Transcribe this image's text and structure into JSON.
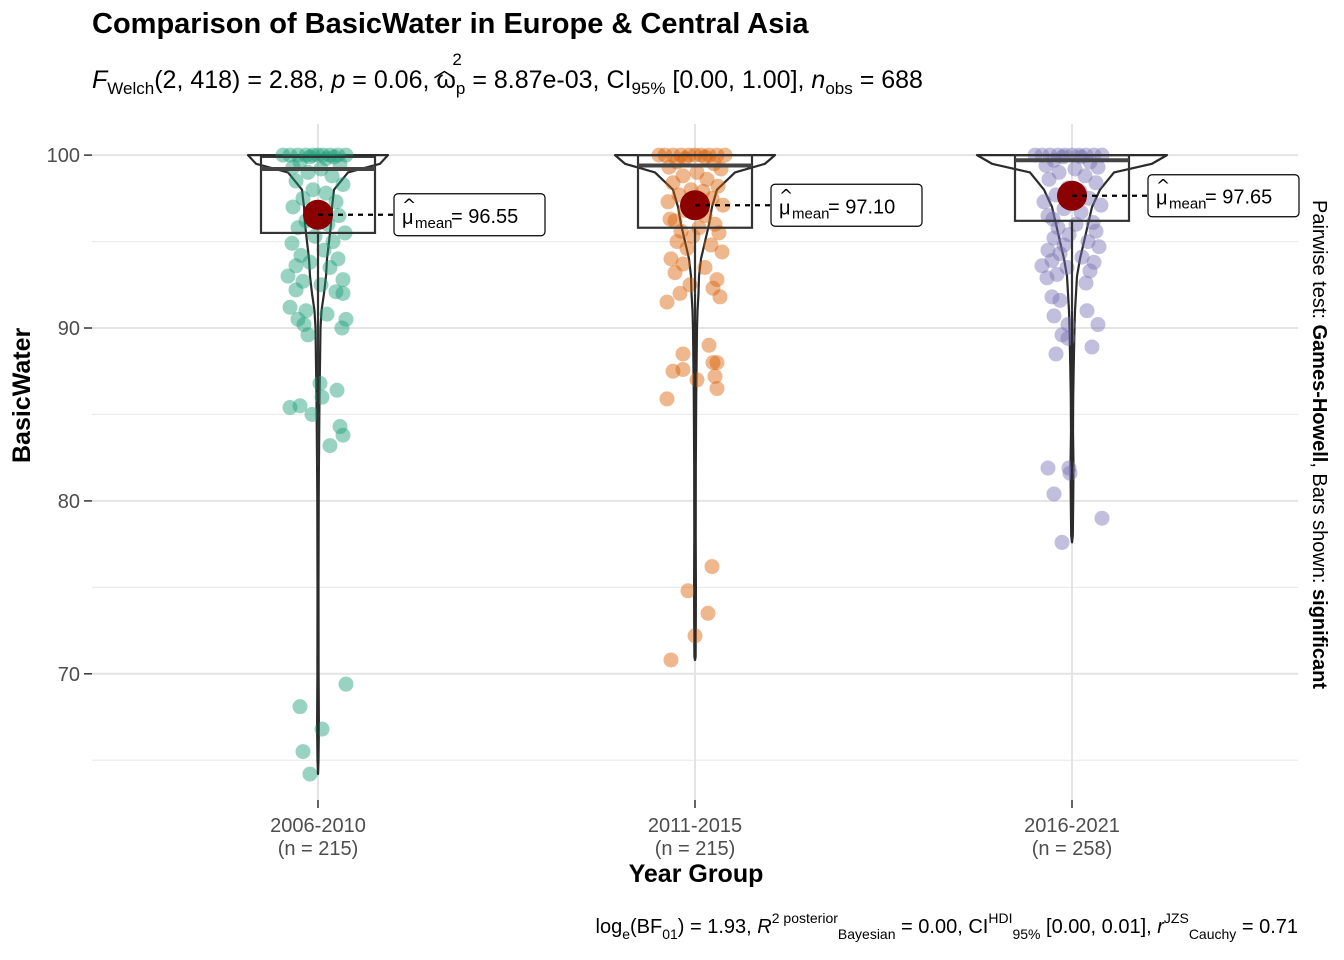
{
  "title": "Comparison of BasicWater in Europe & Central Asia",
  "subtitle": {
    "stat_prefix": "F",
    "stat_sub": "Welch",
    "stat_args": "(2, 418) = 2.88, ",
    "p_label": "p",
    "p_value": " = 0.06, ",
    "omega": "ω",
    "omega_sup": "2",
    "omega_sub": "p",
    "omega_value": " = 8.87e-03, CI",
    "ci_sub": "95%",
    "ci_value": " [0.00, 1.00], ",
    "n_label": "n",
    "n_sub": "obs",
    "n_value": " = 688"
  },
  "caption": {
    "part1": "log",
    "part1_sub": "e",
    "part2": "(BF",
    "part2_sub": "01",
    "part3": ") = 1.93, ",
    "r2": "R",
    "r2_sup": "2 posterior",
    "r2_sub": "Bayesian",
    "part4": " = 0.00, CI",
    "ci_sup": "HDI",
    "ci_sub": "95%",
    "part5": " [0.00, 0.01], ",
    "r": "r",
    "r_sup": "JZS",
    "r_sub": "Cauchy",
    "part6": " = 0.71"
  },
  "right_label": {
    "prefix": "Pairwise test: ",
    "test": "Games-Howell",
    "middle": ", Bars shown: ",
    "shown": "significant"
  },
  "chart_data": {
    "type": "violin-box-scatter",
    "xlabel": "Year Group",
    "ylabel": "BasicWater",
    "ylim": [
      62.7,
      101.8
    ],
    "yticks": [
      70,
      80,
      90,
      100
    ],
    "grid": true,
    "mean_color": "#8B0000",
    "groups": [
      {
        "name": "2006-2010",
        "n_label": "(n = 215)",
        "color": "#1B9E77",
        "mean": 96.55,
        "mean_label": "96.55",
        "box": {
          "q1": 95.5,
          "median": 99.2,
          "q3": 99.9,
          "whisker_low": 82,
          "whisker_high": 100
        },
        "violin_min": 64.2,
        "points": [
          [
            0,
            100
          ],
          [
            -5,
            100
          ],
          [
            5,
            100
          ],
          [
            -12,
            100
          ],
          [
            12,
            100
          ],
          [
            -20,
            100
          ],
          [
            20,
            100
          ],
          [
            -28,
            100
          ],
          [
            28,
            100
          ],
          [
            -35,
            100
          ],
          [
            -8,
            99.9
          ],
          [
            8,
            99.8
          ],
          [
            16,
            99.9
          ],
          [
            -18,
            99.6
          ],
          [
            22,
            99.5
          ],
          [
            -25,
            99.3
          ],
          [
            3,
            99.2
          ],
          [
            -10,
            99
          ],
          [
            14,
            98.8
          ],
          [
            -22,
            98.5
          ],
          [
            25,
            98.3
          ],
          [
            -5,
            98
          ],
          [
            8,
            97.8
          ],
          [
            -15,
            97.5
          ],
          [
            18,
            97.3
          ],
          [
            -25,
            97
          ],
          [
            1,
            96.8
          ],
          [
            21,
            96.5
          ],
          [
            -12,
            96.2
          ],
          [
            10,
            96
          ],
          [
            -20,
            95.8
          ],
          [
            27,
            95.5
          ],
          [
            -3,
            95.3
          ],
          [
            15,
            95
          ],
          [
            -26,
            94.9
          ],
          [
            6,
            94.5
          ],
          [
            -17,
            94.2
          ],
          [
            20,
            94
          ],
          [
            -8,
            93.8
          ],
          [
            -22,
            93.6
          ],
          [
            12,
            93.5
          ],
          [
            -30,
            93
          ],
          [
            25,
            92.8
          ],
          [
            -15,
            92.7
          ],
          [
            3,
            92.5
          ],
          [
            -22,
            92.2
          ],
          [
            18,
            92.1
          ],
          [
            25,
            92
          ],
          [
            -28,
            91.2
          ],
          [
            -12,
            91
          ],
          [
            9,
            90.8
          ],
          [
            -20,
            90.5
          ],
          [
            28,
            90.5
          ],
          [
            -14,
            90.2
          ],
          [
            24,
            90
          ],
          [
            -10,
            89.6
          ],
          [
            2,
            86.8
          ],
          [
            -28,
            85.4
          ],
          [
            -18,
            85.5
          ],
          [
            -6,
            85
          ],
          [
            4,
            86
          ],
          [
            19,
            86.4
          ],
          [
            22,
            84.3
          ],
          [
            25,
            83.8
          ],
          [
            12,
            83.2
          ],
          [
            -18,
            68.1
          ],
          [
            28,
            69.4
          ],
          [
            4,
            66.8
          ],
          [
            -15,
            65.5
          ],
          [
            -8,
            64.2
          ]
        ]
      },
      {
        "name": "2011-2015",
        "n_label": "(n = 215)",
        "color": "#D95F02",
        "mean": 97.1,
        "mean_label": "97.10",
        "box": {
          "q1": 95.8,
          "median": 99.4,
          "q3": 100,
          "whisker_low": 92,
          "whisker_high": 100
        },
        "violin_min": 70.8,
        "points": [
          [
            0,
            100
          ],
          [
            -6,
            100
          ],
          [
            6,
            100
          ],
          [
            -14,
            100
          ],
          [
            14,
            100
          ],
          [
            -22,
            100
          ],
          [
            22,
            100
          ],
          [
            -30,
            100
          ],
          [
            30,
            100
          ],
          [
            -36,
            100
          ],
          [
            10,
            99.9
          ],
          [
            -10,
            99.8
          ],
          [
            -18,
            99.6
          ],
          [
            19,
            99.5
          ],
          [
            -26,
            99.3
          ],
          [
            26,
            99.2
          ],
          [
            2,
            99
          ],
          [
            -12,
            98.8
          ],
          [
            12,
            98.6
          ],
          [
            -22,
            98.4
          ],
          [
            23,
            98.2
          ],
          [
            -4,
            98
          ],
          [
            8,
            97.9
          ],
          [
            -16,
            97.7
          ],
          [
            17,
            97.5
          ],
          [
            -27,
            97.3
          ],
          [
            28,
            97.1
          ],
          [
            -10,
            96.8
          ],
          [
            10,
            96.5
          ],
          [
            -25,
            96.3
          ],
          [
            -20,
            96.2
          ],
          [
            20,
            96
          ],
          [
            4,
            95.8
          ],
          [
            -14,
            95.6
          ],
          [
            24,
            95.5
          ],
          [
            -2,
            95.3
          ],
          [
            -18,
            95
          ],
          [
            16,
            94.8
          ],
          [
            -8,
            94.6
          ],
          [
            27,
            94.4
          ],
          [
            -24,
            94
          ],
          [
            -12,
            93.7
          ],
          [
            10,
            93.5
          ],
          [
            -20,
            93.2
          ],
          [
            22,
            92.8
          ],
          [
            -5,
            92.5
          ],
          [
            18,
            92.3
          ],
          [
            -15,
            92
          ],
          [
            25,
            91.8
          ],
          [
            -28,
            91.5
          ],
          [
            14,
            89
          ],
          [
            -12,
            88.5
          ],
          [
            18,
            88
          ],
          [
            22,
            88
          ],
          [
            -22,
            87.5
          ],
          [
            -12,
            87.6
          ],
          [
            2,
            87
          ],
          [
            20,
            87.2
          ],
          [
            -28,
            85.9
          ],
          [
            22,
            86.5
          ],
          [
            17,
            76.2
          ],
          [
            -7,
            74.8
          ],
          [
            13,
            73.5
          ],
          [
            0,
            72.2
          ],
          [
            -24,
            70.8
          ]
        ]
      },
      {
        "name": "2016-2021",
        "n_label": "(n = 258)",
        "color": "#7570B3",
        "mean": 97.65,
        "mean_label": "97.65",
        "box": {
          "q1": 96.2,
          "median": 99.7,
          "q3": 100,
          "whisker_low": 91,
          "whisker_high": 100
        },
        "violin_min": 77.6,
        "points": [
          [
            0,
            100
          ],
          [
            -7,
            100
          ],
          [
            7,
            100
          ],
          [
            -14,
            100
          ],
          [
            14,
            100
          ],
          [
            -22,
            100
          ],
          [
            22,
            100
          ],
          [
            -30,
            100
          ],
          [
            30,
            100
          ],
          [
            -37,
            100
          ],
          [
            -9,
            99.9
          ],
          [
            9,
            99.9
          ],
          [
            -18,
            99.7
          ],
          [
            18,
            99.6
          ],
          [
            -26,
            99.4
          ],
          [
            26,
            99.3
          ],
          [
            3,
            99.2
          ],
          [
            -13,
            99
          ],
          [
            13,
            98.8
          ],
          [
            -23,
            98.6
          ],
          [
            24,
            98.4
          ],
          [
            -4,
            98.1
          ],
          [
            8,
            97.9
          ],
          [
            -16,
            97.7
          ],
          [
            17,
            97.5
          ],
          [
            -28,
            97.3
          ],
          [
            29,
            97.1
          ],
          [
            -8,
            96.9
          ],
          [
            9,
            96.7
          ],
          [
            -24,
            96.5
          ],
          [
            -19,
            96.3
          ],
          [
            21,
            96.1
          ],
          [
            4,
            96
          ],
          [
            -14,
            95.8
          ],
          [
            24,
            95.6
          ],
          [
            -3,
            95.4
          ],
          [
            -18,
            95.2
          ],
          [
            16,
            95
          ],
          [
            -8,
            94.8
          ],
          [
            27,
            94.7
          ],
          [
            -24,
            94.5
          ],
          [
            -12,
            94.3
          ],
          [
            10,
            94.1
          ],
          [
            -20,
            93.9
          ],
          [
            22,
            93.8
          ],
          [
            -30,
            93.6
          ],
          [
            -5,
            93.5
          ],
          [
            18,
            93.3
          ],
          [
            -15,
            93.1
          ],
          [
            -25,
            92.9
          ],
          [
            14,
            92.6
          ],
          [
            -20,
            91.8
          ],
          [
            -12,
            91.6
          ],
          [
            15,
            91
          ],
          [
            -18,
            90.7
          ],
          [
            -4,
            90.2
          ],
          [
            26,
            90.2
          ],
          [
            -10,
            89.6
          ],
          [
            -4,
            89.4
          ],
          [
            20,
            88.9
          ],
          [
            -16,
            88.5
          ],
          [
            -24,
            81.9
          ],
          [
            -3,
            81.9
          ],
          [
            -2,
            81.6
          ],
          [
            -18,
            80.4
          ],
          [
            30,
            79
          ],
          [
            -10,
            77.6
          ]
        ]
      }
    ]
  }
}
